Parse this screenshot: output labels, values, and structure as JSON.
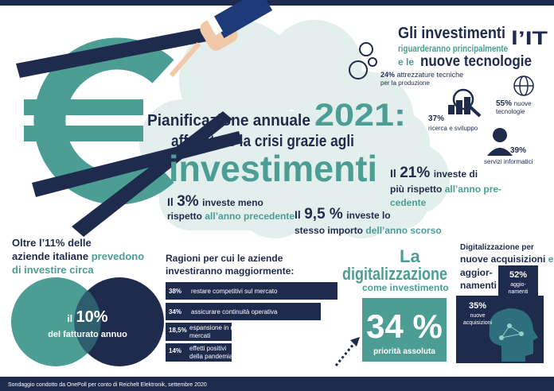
{
  "title": {
    "line1": "Pianificazione annuale",
    "year": "2021:",
    "line2": "affrontare la crisi grazie agli",
    "line3": "investimenti"
  },
  "it_focus": {
    "title": {
      "a": "Gli investimenti",
      "b": "riguarderanno principalmente",
      "c": "l’IT",
      "d": "e le",
      "e": "nuove tecnologie"
    },
    "items": [
      {
        "value": "24%",
        "label": [
          "attrezzature tecniche",
          "per la produzione"
        ]
      },
      {
        "value": "37%",
        "label": [
          "ricerca e sviluppo"
        ]
      },
      {
        "value": "55%",
        "label": [
          "nuove",
          "tecnologie"
        ]
      },
      {
        "value": "39%",
        "label": [
          "servizi informatici"
        ]
      }
    ]
  },
  "stats": {
    "more": {
      "lead": "Il",
      "value": "21%",
      "text1": "investe di",
      "text2": "più rispetto",
      "text3": "all’anno pre-",
      "text4": "cedente"
    },
    "less": {
      "lead": "Il",
      "value": "3%",
      "text1": "investe meno",
      "text2": "rispetto",
      "text3": "all’anno precedente"
    },
    "same": {
      "lead": "Il",
      "value": "9,5 %",
      "text1": "investe lo",
      "text2": "stesso importo",
      "text3": "dell’anno scorso"
    }
  },
  "revenue": {
    "line1": "Oltre l’11% delle",
    "line2a": "aziende italiane",
    "line2b": "prevedono",
    "line3": "di investire circa",
    "lead": "il",
    "value": "10%",
    "caption": "del fatturato annuo"
  },
  "reasons": {
    "title": [
      "Ragioni per cui le aziende",
      "investiranno maggiormente:"
    ],
    "rows": [
      {
        "value": "38%",
        "label": [
          "restare competitivi sul mercato"
        ]
      },
      {
        "value": "34%",
        "label": [
          "assicurare continuità operativa"
        ]
      },
      {
        "value": "18,5%",
        "label": [
          "espansione in nuovi",
          "mercati"
        ]
      },
      {
        "value": "14%",
        "label": [
          "effetti positivi",
          "della pandemia"
        ]
      }
    ]
  },
  "digital": {
    "line1": "La",
    "line2": "digitalizzazione",
    "line3": "come investimento",
    "value": "34 %",
    "caption": "priorità assoluta"
  },
  "acquisitions": {
    "title": {
      "a": "Digitalizzazione per",
      "b": "nuove acquisizioni",
      "c": "e",
      "d": "aggior-",
      "e": "namenti"
    },
    "items": [
      {
        "value": "52%",
        "label": [
          "aggio-",
          "namenti"
        ]
      },
      {
        "value": "35%",
        "label": [
          "nuove",
          "acquisizioni"
        ]
      }
    ]
  },
  "footer": "Sondaggio condotto da OnePoll per conto di Reichelt Elektronik, settembre 2020"
}
